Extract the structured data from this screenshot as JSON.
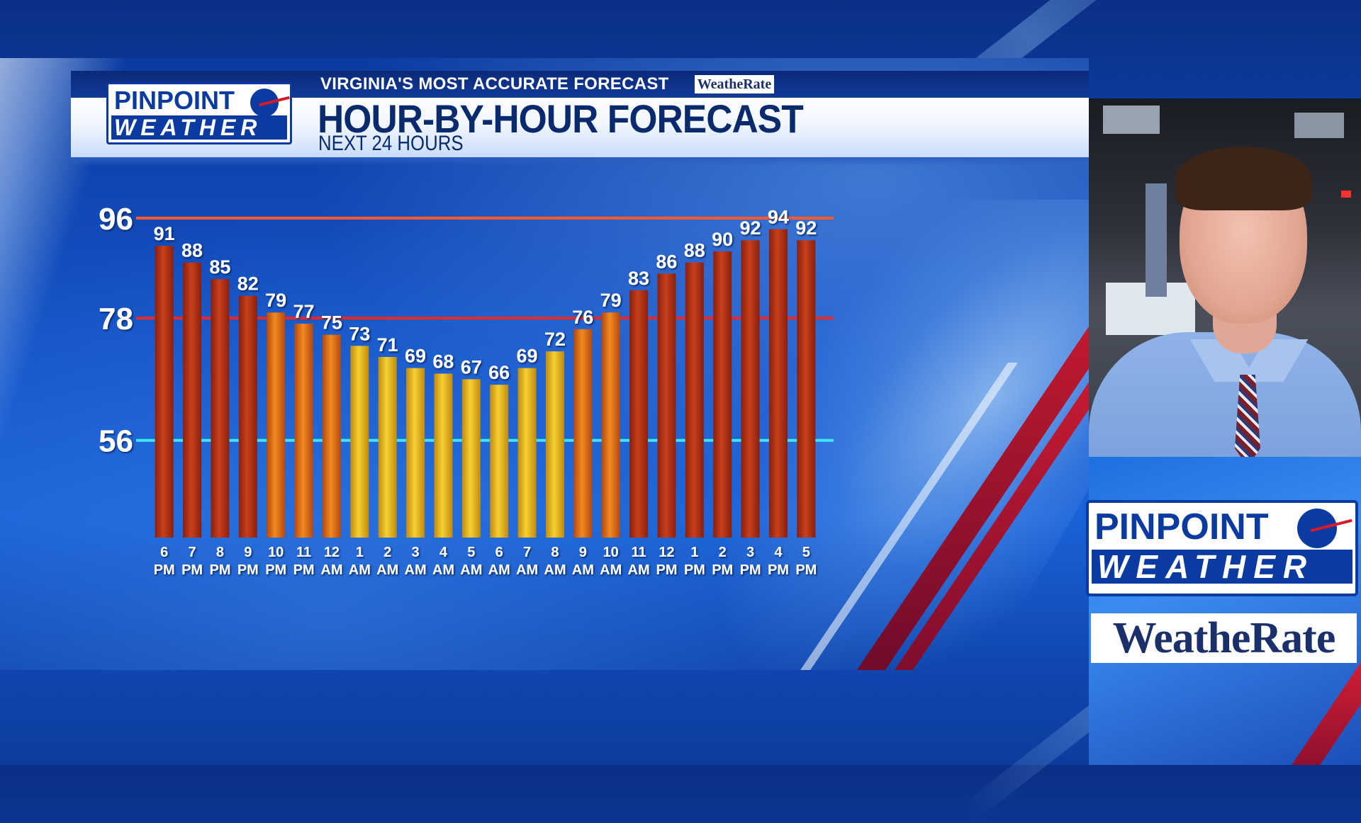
{
  "header": {
    "kicker": "VIRGINIA'S MOST ACCURATE FORECAST",
    "kicker_brand": "WeatheRate",
    "title": "HOUR-BY-HOUR FORECAST",
    "subtitle": "NEXT 24 HOURS"
  },
  "logo": {
    "line1": "PINPOINT",
    "line2": "WEATHER"
  },
  "side": {
    "logo_line1": "PINPOINT",
    "logo_line2": "WEATHER",
    "brand": "WeatheRate"
  },
  "colors": {
    "hot_bar": "#b8321a",
    "warm_bar": "#e07818",
    "mild_bar": "#e8b81a",
    "line_96": "#ff5a2a",
    "line_78": "#e8282a",
    "line_56": "#3fe6f0",
    "brand_blue": "#0b3aa0",
    "accent_red": "#d71a28"
  },
  "chart_data": {
    "type": "bar",
    "title": "HOUR-BY-HOUR FORECAST",
    "subtitle": "NEXT 24 HOURS",
    "categories": [
      "6 PM",
      "7 PM",
      "8 PM",
      "9 PM",
      "10 PM",
      "11 PM",
      "12 AM",
      "1 AM",
      "2 AM",
      "3 AM",
      "4 AM",
      "5 AM",
      "6 AM",
      "7 AM",
      "8 AM",
      "9 AM",
      "10 AM",
      "11 AM",
      "12 PM",
      "1 PM",
      "2 PM",
      "3 PM",
      "4 PM",
      "5 PM"
    ],
    "category_lines": [
      [
        "6",
        "PM"
      ],
      [
        "7",
        "PM"
      ],
      [
        "8",
        "PM"
      ],
      [
        "9",
        "PM"
      ],
      [
        "10",
        "PM"
      ],
      [
        "11",
        "PM"
      ],
      [
        "12",
        "AM"
      ],
      [
        "1",
        "AM"
      ],
      [
        "2",
        "AM"
      ],
      [
        "3",
        "AM"
      ],
      [
        "4",
        "AM"
      ],
      [
        "5",
        "AM"
      ],
      [
        "6",
        "AM"
      ],
      [
        "7",
        "AM"
      ],
      [
        "8",
        "AM"
      ],
      [
        "9",
        "AM"
      ],
      [
        "10",
        "AM"
      ],
      [
        "11",
        "AM"
      ],
      [
        "12",
        "PM"
      ],
      [
        "1",
        "PM"
      ],
      [
        "2",
        "PM"
      ],
      [
        "3",
        "PM"
      ],
      [
        "4",
        "PM"
      ],
      [
        "5",
        "PM"
      ]
    ],
    "values": [
      91,
      88,
      85,
      82,
      79,
      77,
      75,
      73,
      71,
      69,
      68,
      67,
      66,
      69,
      72,
      76,
      79,
      83,
      86,
      88,
      90,
      92,
      94,
      92
    ],
    "reference_lines": [
      {
        "label": "96",
        "value": 96
      },
      {
        "label": "78",
        "value": 78
      },
      {
        "label": "56",
        "value": 56
      }
    ],
    "ylim": [
      38.5,
      97
    ],
    "xlabel": "",
    "ylabel": "",
    "grid": false,
    "data_labels": true
  }
}
